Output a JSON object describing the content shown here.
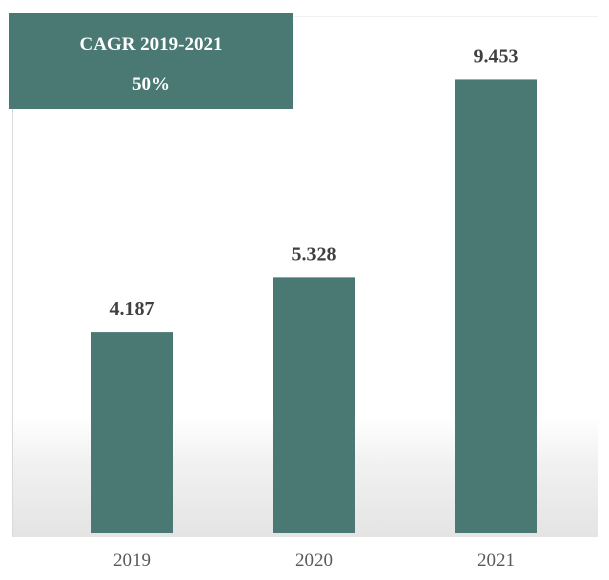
{
  "annotation": {
    "line1": "CAGR  2019-2021",
    "line2": "50%"
  },
  "colors": {
    "bar": "#4a7873",
    "annotation_bg": "#4a7873"
  },
  "chart_data": {
    "type": "bar",
    "categories": [
      "2019",
      "2020",
      "2021"
    ],
    "values": [
      4.187,
      5.328,
      9.453
    ],
    "value_labels": [
      "4.187",
      "5.328",
      "9.453"
    ],
    "title": "",
    "xlabel": "",
    "ylabel": "",
    "ylim": [
      0,
      10.9
    ],
    "grid": false,
    "legend": "none"
  }
}
